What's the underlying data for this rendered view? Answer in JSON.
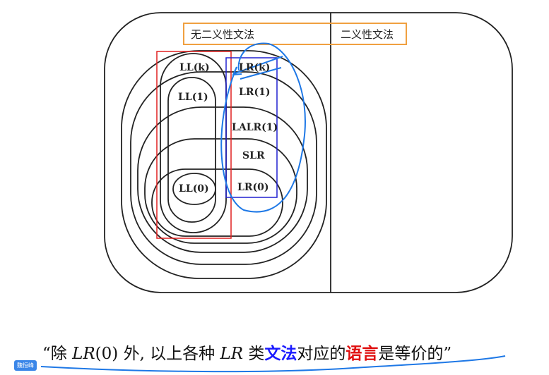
{
  "diagram": {
    "region_unambiguous": "无二义性文法",
    "region_ambiguous": "二义性文法",
    "classes": {
      "llk": "LL(k)",
      "ll1": "LL(1)",
      "ll0": "LL(0)",
      "lrk": "LR(k)",
      "lr1": "LR(1)",
      "lalr1": "LALR(1)",
      "slr": "SLR",
      "lr0": "LR(0)"
    },
    "colors": {
      "orange_box": "#f0a040",
      "red_box": "#e02020",
      "blue_box": "#2020d0",
      "ink": "#1e78e6"
    }
  },
  "caption": {
    "open_quote": "“",
    "p1": "除 ",
    "m1": "LR",
    "p2": "(0) 外, 以上各种 ",
    "m2": "LR",
    "p3": " 类",
    "blue": "文法",
    "p4": "对应的",
    "red": "语言",
    "p5": "是等价的",
    "close_quote": "”"
  },
  "user_tag": "魏恒峰"
}
